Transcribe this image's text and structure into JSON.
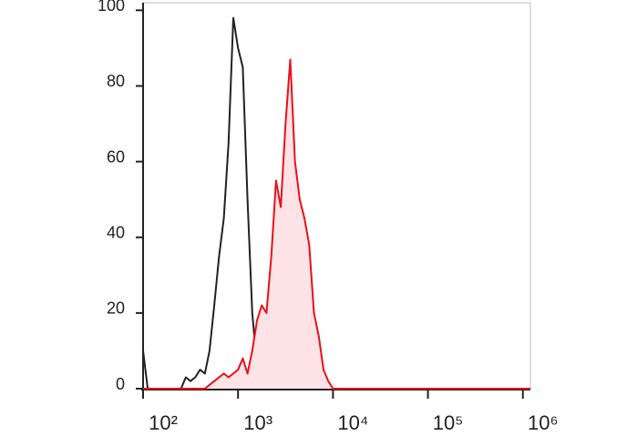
{
  "chart_data": {
    "type": "histogram-line",
    "x": [
      100,
      112,
      126,
      141,
      158,
      178,
      200,
      224,
      251,
      282,
      316,
      355,
      398,
      447,
      501,
      562,
      631,
      708,
      794,
      891,
      1000,
      1122,
      1259,
      1413,
      1585,
      1778,
      1995,
      2239,
      2512,
      2818,
      3162,
      3548,
      3981,
      4467,
      5012,
      5623,
      6310,
      7079,
      7943,
      8913,
      10000,
      12589,
      15849,
      1200000
    ],
    "series": [
      {
        "color": "#222222",
        "values": [
          10,
          0,
          0,
          0,
          0,
          0,
          0,
          0,
          0,
          3,
          2,
          3,
          5,
          4,
          10,
          22,
          35,
          45,
          65,
          98,
          90,
          85,
          50,
          20,
          6,
          3,
          2,
          1,
          0,
          0,
          0,
          0,
          0,
          0,
          0,
          0,
          0,
          0,
          0,
          0,
          0,
          0,
          0,
          0
        ]
      },
      {
        "color": "#e8101a",
        "fill": "#fde3e5",
        "values": [
          0,
          0,
          0,
          0,
          0,
          0,
          0,
          0,
          0,
          0,
          0,
          0,
          0,
          0,
          1,
          2,
          3,
          4,
          3,
          4,
          5,
          8,
          4,
          10,
          18,
          22,
          20,
          35,
          55,
          48,
          70,
          87,
          60,
          50,
          45,
          38,
          20,
          14,
          5,
          2,
          0,
          0,
          0,
          0
        ]
      }
    ],
    "xscale": "log",
    "xlim": [
      100,
      1200000
    ],
    "xticks": [
      {
        "value": 100,
        "label": "10²"
      },
      {
        "value": 1000,
        "label": "10³"
      },
      {
        "value": 10000,
        "label": "10⁴"
      },
      {
        "value": 100000,
        "label": "10⁵"
      },
      {
        "value": 1000000,
        "label": "10⁶"
      }
    ],
    "ylim": [
      0,
      102
    ],
    "yticks": [
      0,
      20,
      40,
      60,
      80,
      100
    ]
  }
}
